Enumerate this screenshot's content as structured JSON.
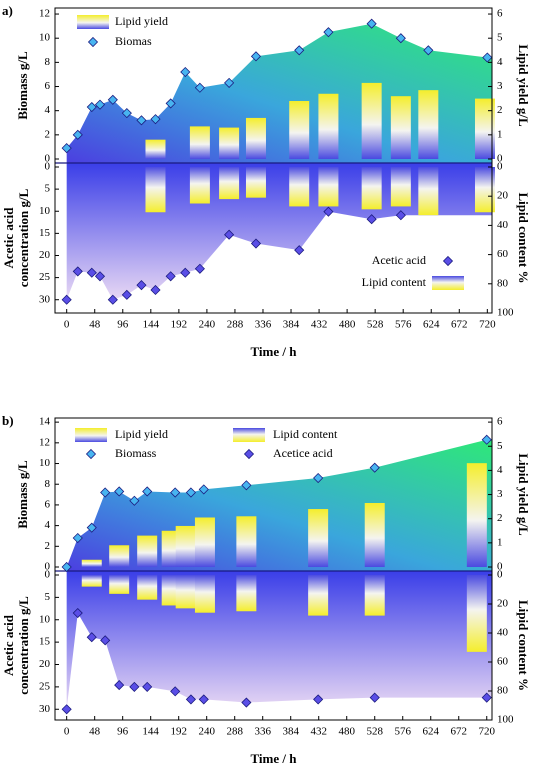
{
  "chart_data": [
    {
      "type": "mirror",
      "panel_label": "a)",
      "xlabel": "Time / h",
      "ylabel": "Biomass g/L",
      "y2label": "Lipid yield g/L",
      "lower_ylabel": [
        "Acetic acid",
        "concentration g/L"
      ],
      "lower_y2label": "Lipid content %",
      "xlim": [
        -20,
        728
      ],
      "xticks": [
        0,
        48,
        96,
        144,
        192,
        240,
        288,
        336,
        384,
        432,
        480,
        528,
        576,
        624,
        672,
        720
      ],
      "ylim": [
        0,
        12.5
      ],
      "yticks": [
        0,
        2,
        4,
        6,
        8,
        10,
        12
      ],
      "y2lim": [
        0,
        6.25
      ],
      "y2ticks": [
        0,
        1,
        2,
        3,
        4,
        5,
        6
      ],
      "lower_ylim": [
        0,
        33
      ],
      "lower_yticks": [
        0,
        5,
        10,
        15,
        20,
        25,
        30
      ],
      "lower_y2lim": [
        0,
        100
      ],
      "lower_y2ticks": [
        0,
        20,
        40,
        60,
        80,
        100
      ],
      "legend": "split",
      "series": [
        {
          "name": "Lipid yield",
          "kind": "bar",
          "axis": "y2",
          "color": "#f4ee2c",
          "x": [
            152,
            228,
            278,
            324,
            398,
            448,
            522,
            572,
            619,
            716
          ],
          "values": [
            0.8,
            1.35,
            1.3,
            1.7,
            2.4,
            2.7,
            3.15,
            2.6,
            2.85,
            2.5
          ]
        },
        {
          "name": "Biomas",
          "kind": "area",
          "axis": "y",
          "color": "#2ee878",
          "marker_color": "#48b4f0",
          "x": [
            0,
            19,
            43,
            57,
            79,
            103,
            128,
            152,
            178,
            203,
            228,
            278,
            324,
            398,
            448,
            522,
            572,
            619,
            720
          ],
          "values": [
            0.9,
            2.0,
            4.3,
            4.5,
            4.9,
            3.8,
            3.2,
            3.3,
            4.6,
            7.2,
            5.9,
            6.3,
            8.5,
            9.0,
            10.5,
            11.2,
            10.0,
            9.0,
            8.4
          ]
        },
        {
          "name": "Acetic acid",
          "kind": "area",
          "axis": "lower_y",
          "color": "#e8d8f4",
          "marker_color": "#5a4ee6",
          "x": [
            0,
            19,
            43,
            57,
            79,
            103,
            128,
            152,
            178,
            203,
            228,
            278,
            324,
            398,
            448,
            522,
            572
          ],
          "values": [
            30,
            23.6,
            23.9,
            24.7,
            30,
            28.9,
            26.7,
            27.8,
            24.7,
            23.9,
            23,
            15.3,
            17.3,
            18.8,
            10.1,
            11.8,
            10.9
          ]
        },
        {
          "name": "Lipid content",
          "kind": "bar",
          "axis": "lower_y2",
          "color": "#f4ee2c",
          "x": [
            152,
            228,
            278,
            324,
            398,
            448,
            522,
            572,
            619,
            716
          ],
          "values": [
            31,
            25,
            22,
            21,
            27,
            27,
            29,
            27,
            33,
            31
          ]
        }
      ]
    },
    {
      "type": "mirror",
      "panel_label": "b)",
      "xlabel": "Time / h",
      "ylabel": "Biomass g/L",
      "y2label": "Lipid yield g/L",
      "lower_ylabel": [
        "Acetic acid",
        "concentration g/L"
      ],
      "lower_y2label": "Lipid content %",
      "xlim": [
        -20,
        729
      ],
      "xticks": [
        0,
        48,
        96,
        144,
        192,
        240,
        288,
        336,
        384,
        432,
        480,
        528,
        576,
        624,
        672,
        720
      ],
      "ylim": [
        0,
        14.4
      ],
      "yticks": [
        0,
        2,
        4,
        6,
        8,
        10,
        12,
        14
      ],
      "y2lim": [
        0,
        6.17
      ],
      "y2ticks": [
        0,
        1,
        2,
        3,
        4,
        5,
        6
      ],
      "lower_ylim": [
        0,
        32.4
      ],
      "lower_yticks": [
        0,
        5,
        10,
        15,
        20,
        25,
        30
      ],
      "lower_y2lim": [
        0,
        100
      ],
      "lower_y2ticks": [
        0,
        20,
        40,
        60,
        80,
        100
      ],
      "legend": "grid",
      "series": [
        {
          "name": "Lipid yield",
          "kind": "bar",
          "axis": "y2",
          "color": "#f4ee2c",
          "x": [
            43,
            90,
            138,
            180,
            204,
            237,
            308,
            431,
            528,
            703
          ],
          "values": [
            0.3,
            0.9,
            1.3,
            1.5,
            1.7,
            2.05,
            2.1,
            2.4,
            2.65,
            4.3
          ]
        },
        {
          "name": "Lipid content",
          "kind": "bar",
          "axis": "lower_y2",
          "color": "#f4ee2c",
          "x": [
            43,
            90,
            138,
            180,
            204,
            237,
            308,
            431,
            528,
            703
          ],
          "values": [
            8,
            13,
            17,
            21,
            23,
            26,
            25,
            28,
            28,
            53
          ]
        },
        {
          "name": "Biomass",
          "kind": "area",
          "axis": "y",
          "color": "#2ee878",
          "marker_color": "#48b4f0",
          "x": [
            0,
            19,
            43,
            66,
            90,
            116,
            138,
            186,
            213,
            235,
            308,
            431,
            528,
            720
          ],
          "values": [
            0,
            2.8,
            3.8,
            7.2,
            7.3,
            6.4,
            7.3,
            7.2,
            7.2,
            7.5,
            7.9,
            8.6,
            9.6,
            12.3
          ]
        },
        {
          "name": "Acetice acid",
          "kind": "area",
          "axis": "lower_y",
          "color": "#e8d8f4",
          "marker_color": "#5a4ee6",
          "x": [
            0,
            19,
            43,
            66,
            90,
            116,
            138,
            186,
            213,
            235,
            308,
            431,
            528,
            720
          ],
          "values": [
            30,
            8.5,
            13.9,
            14.6,
            24.6,
            25,
            25,
            26,
            27.8,
            27.8,
            28.5,
            27.8,
            27.4,
            27.4
          ]
        }
      ]
    }
  ]
}
